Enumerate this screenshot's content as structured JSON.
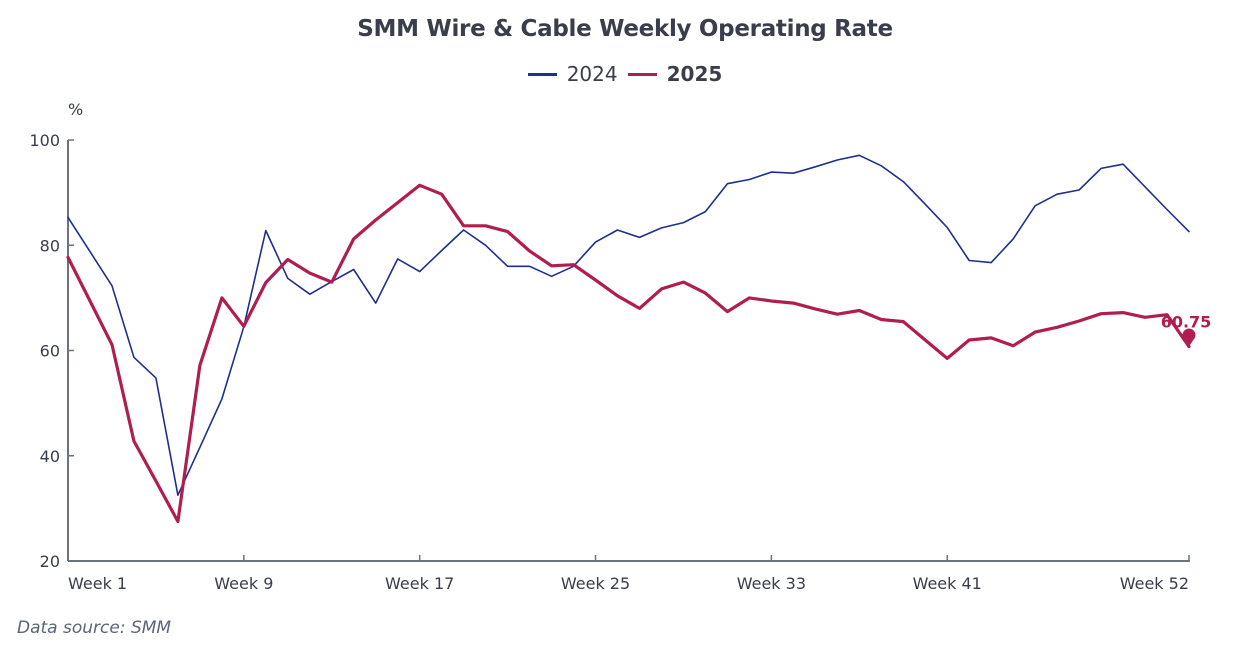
{
  "chart_data": {
    "type": "line",
    "title": "SMM Wire & Cable Weekly Operating Rate",
    "xlabel": "",
    "ylabel": "%",
    "ylim": [
      20,
      100
    ],
    "yticks": [
      20,
      40,
      60,
      80,
      100
    ],
    "xlim": [
      1,
      52
    ],
    "xticks": [
      {
        "week": 1,
        "label": "Week 1"
      },
      {
        "week": 9,
        "label": "Week 9"
      },
      {
        "week": 17,
        "label": "Week 17"
      },
      {
        "week": 25,
        "label": "Week 25"
      },
      {
        "week": 33,
        "label": "Week 33"
      },
      {
        "week": 41,
        "label": "Week 41"
      },
      {
        "week": 52,
        "label": "Week 52"
      }
    ],
    "grid": false,
    "legend_position": "top-center",
    "x": [
      1,
      2,
      3,
      4,
      5,
      6,
      7,
      8,
      9,
      10,
      11,
      12,
      13,
      14,
      15,
      16,
      17,
      18,
      19,
      20,
      21,
      22,
      23,
      24,
      25,
      26,
      27,
      28,
      29,
      30,
      31,
      32,
      33,
      34,
      35,
      36,
      37,
      38,
      39,
      40,
      41,
      42,
      43,
      44,
      45,
      46,
      47,
      48,
      49,
      50,
      51,
      52
    ],
    "series": [
      {
        "name": "2024",
        "color": "#1f2f8f",
        "values": [
          85.3,
          78.8,
          72.3,
          58.7,
          54.8,
          32.5,
          41.6,
          50.8,
          64.5,
          82.8,
          73.7,
          70.7,
          73.1,
          75.4,
          69.0,
          77.4,
          75.0,
          79.0,
          82.9,
          80.0,
          76.0,
          76.0,
          74.1,
          76.0,
          80.6,
          82.9,
          81.5,
          83.3,
          84.3,
          86.4,
          91.7,
          92.5,
          93.9,
          93.7,
          94.9,
          96.2,
          97.1,
          95.1,
          92.1,
          87.8,
          83.4,
          77.1,
          76.7,
          81.2,
          87.5,
          89.7,
          90.5,
          94.6,
          95.4,
          91.1,
          86.8,
          82.6
        ]
      },
      {
        "name": "2025",
        "color": "#b01e4f",
        "values": [
          77.7,
          69.4,
          61.1,
          42.8,
          35.2,
          27.5,
          57.2,
          70.0,
          64.6,
          72.9,
          77.3,
          74.7,
          73.0,
          81.2,
          84.8,
          88.1,
          91.4,
          89.7,
          83.7,
          83.7,
          82.6,
          78.9,
          76.1,
          76.3,
          73.4,
          70.4,
          68.0,
          71.7,
          73.0,
          70.9,
          67.4,
          70.0,
          69.4,
          69.0,
          67.9,
          66.9,
          67.6,
          65.9,
          65.5,
          62.0,
          58.5,
          62.0,
          62.4,
          60.9,
          63.5,
          64.4,
          65.6,
          67.0,
          67.2,
          66.3,
          66.8,
          60.75
        ]
      }
    ],
    "annotations": [
      {
        "series": "2025",
        "week": 52,
        "value": 60.75,
        "label": "60.75",
        "marker": "pin"
      }
    ]
  },
  "legend": {
    "items": [
      {
        "label": "2024",
        "color": "#1f2f8f"
      },
      {
        "label": "2025",
        "color": "#b01e4f"
      }
    ]
  },
  "footer": {
    "source": "Data source:  SMM"
  },
  "colors": {
    "axis": "#6b7280",
    "text": "#3a3d4a"
  }
}
